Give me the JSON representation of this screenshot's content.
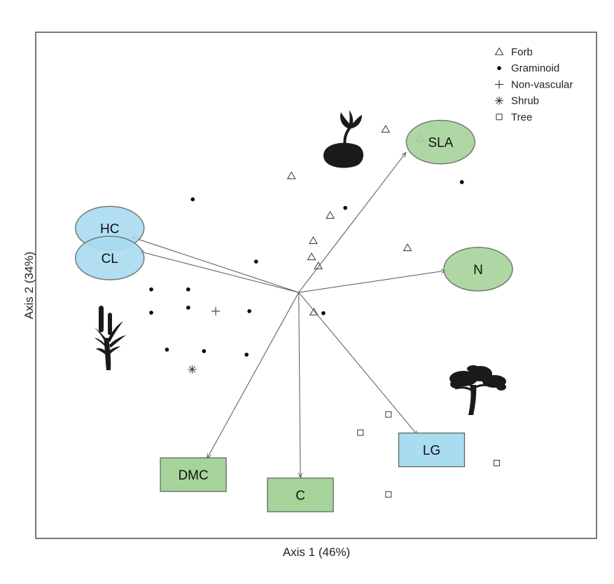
{
  "chart_data": {
    "type": "scatter",
    "xlabel": "Axis 1 (46%)",
    "ylabel": "Axis 2 (34%)",
    "xlim": [
      0,
      100
    ],
    "ylim": [
      0,
      100
    ],
    "grid": false,
    "legend_placement": "top-right",
    "legend": [
      {
        "name": "Forb",
        "marker": "triangle"
      },
      {
        "name": "Graminoid",
        "marker": "dot"
      },
      {
        "name": "Non-vascular",
        "marker": "plus"
      },
      {
        "name": "Shrub",
        "marker": "asterisk"
      },
      {
        "name": "Tree",
        "marker": "square"
      }
    ],
    "series": [
      {
        "name": "Forb",
        "marker": "triangle",
        "points": [
          [
            62.4,
            80.8
          ],
          [
            68.6,
            79.0
          ],
          [
            45.6,
            71.6
          ],
          [
            52.5,
            63.8
          ],
          [
            49.5,
            58.8
          ],
          [
            49.2,
            55.6
          ],
          [
            50.4,
            53.8
          ],
          [
            66.3,
            57.4
          ],
          [
            49.6,
            44.7
          ]
        ]
      },
      {
        "name": "Graminoid",
        "marker": "dot",
        "points": [
          [
            28.0,
            67.0
          ],
          [
            55.2,
            65.3
          ],
          [
            76.0,
            70.4
          ],
          [
            39.3,
            54.7
          ],
          [
            20.6,
            49.2
          ],
          [
            27.2,
            49.2
          ],
          [
            27.2,
            45.6
          ],
          [
            38.1,
            44.9
          ],
          [
            20.6,
            44.6
          ],
          [
            51.3,
            44.5
          ],
          [
            23.4,
            37.3
          ],
          [
            30.0,
            37.0
          ],
          [
            37.6,
            36.3
          ]
        ]
      },
      {
        "name": "Non-vascular",
        "marker": "plus",
        "points": [
          [
            32.1,
            44.9
          ]
        ]
      },
      {
        "name": "Shrub",
        "marker": "asterisk",
        "points": [
          [
            27.9,
            33.4
          ]
        ]
      },
      {
        "name": "Tree",
        "marker": "square",
        "points": [
          [
            62.9,
            24.5
          ],
          [
            57.9,
            20.9
          ],
          [
            82.2,
            14.9
          ],
          [
            62.9,
            8.7
          ]
        ]
      }
    ],
    "origin": [
      46.9,
      48.6
    ],
    "vectors": [
      {
        "label": "SLA",
        "shape": "ellipse",
        "color": "#a6d39a",
        "tip": [
          66.0,
          76.2
        ],
        "center": [
          72.2,
          78.3
        ]
      },
      {
        "label": "HC",
        "shape": "ellipse",
        "color": "#a8dcef",
        "tip": [
          17.2,
          59.5
        ],
        "center": [
          13.2,
          61.3
        ]
      },
      {
        "label": "CL",
        "shape": "ellipse",
        "color": "#a8dcef",
        "tip": [
          18.5,
          56.7
        ],
        "center": [
          13.2,
          55.4
        ]
      },
      {
        "label": "N",
        "shape": "ellipse",
        "color": "#a6d39a",
        "tip": [
          73.1,
          52.9
        ],
        "center": [
          78.9,
          53.2
        ]
      },
      {
        "label": "LG",
        "shape": "rect",
        "color": "#a8dcef",
        "tip": [
          68.1,
          20.4
        ],
        "center": [
          70.6,
          17.5
        ]
      },
      {
        "label": "C",
        "shape": "rect",
        "color": "#a6d39a",
        "tip": [
          47.2,
          12.1
        ],
        "center": [
          47.2,
          8.6
        ]
      },
      {
        "label": "DMC",
        "shape": "rect",
        "color": "#a6d39a",
        "tip": [
          30.6,
          15.9
        ],
        "center": [
          28.1,
          12.6
        ]
      }
    ],
    "icons": [
      "water-lily-icon",
      "cattail-icon",
      "tree-icon"
    ]
  }
}
